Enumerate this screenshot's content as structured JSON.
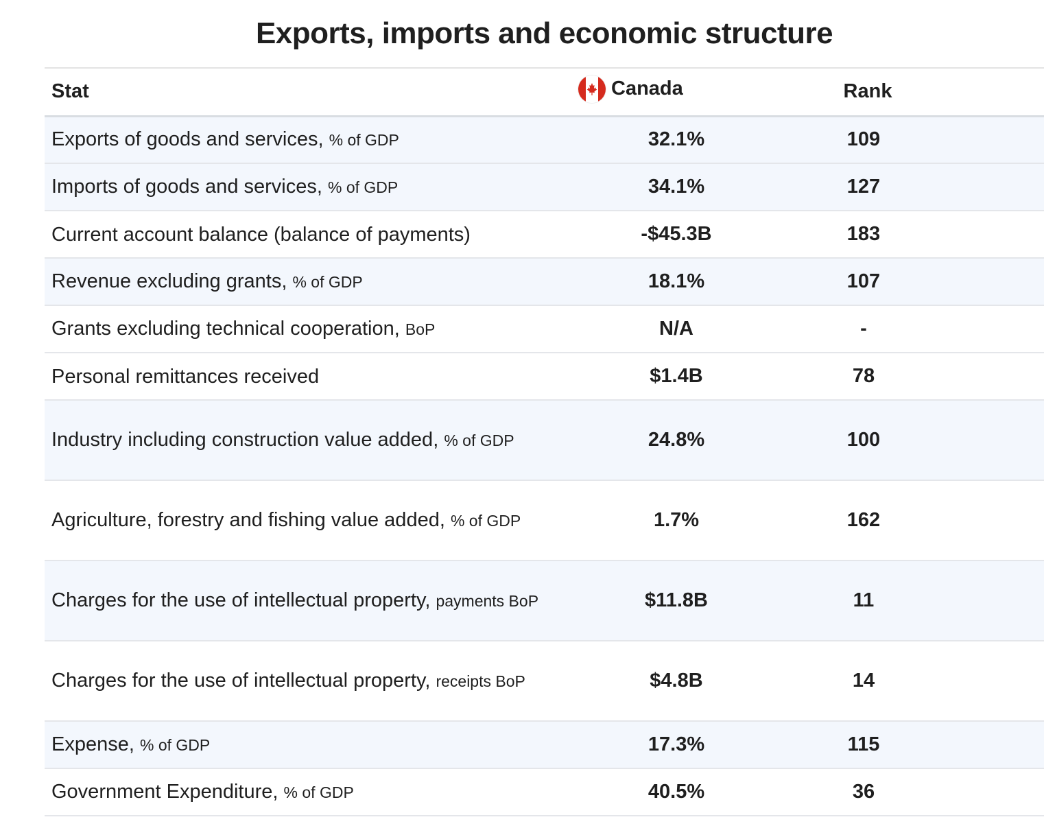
{
  "title": "Exports, imports and economic structure",
  "table": {
    "headers": {
      "stat": "Stat",
      "country": "Canada",
      "rank": "Rank"
    },
    "country_flag_icon": "canada-flag-icon",
    "rows": [
      {
        "label": "Exports of goods and services",
        "unit": "% of GDP",
        "value": "32.1%",
        "rank": "109"
      },
      {
        "label": "Imports of goods and services",
        "unit": "% of GDP",
        "value": "34.1%",
        "rank": "127"
      },
      {
        "label": "Current account balance (balance of payments)",
        "unit": "",
        "value": "-$45.3B",
        "rank": "183"
      },
      {
        "label": "Revenue excluding grants",
        "unit": "% of GDP",
        "value": "18.1%",
        "rank": "107"
      },
      {
        "label": "Grants excluding technical cooperation",
        "unit": "BoP",
        "value": "N/A",
        "rank": "-"
      },
      {
        "label": "Personal remittances received",
        "unit": "",
        "value": "$1.4B",
        "rank": "78"
      },
      {
        "label": "Industry including construction value added",
        "unit": "% of GDP",
        "value": "24.8%",
        "rank": "100"
      },
      {
        "label": "Agriculture, forestry and fishing value added",
        "unit": "% of GDP",
        "value": "1.7%",
        "rank": "162"
      },
      {
        "label": "Charges for the use of intellectual property",
        "unit": "payments BoP",
        "value": "$11.8B",
        "rank": "11"
      },
      {
        "label": "Charges for the use of intellectual property",
        "unit": "receipts BoP",
        "value": "$4.8B",
        "rank": "14"
      },
      {
        "label": "Expense",
        "unit": "% of GDP",
        "value": "17.3%",
        "rank": "115"
      },
      {
        "label": "Government Expenditure",
        "unit": "% of GDP",
        "value": "40.5%",
        "rank": "36"
      }
    ]
  },
  "colors": {
    "shaded_row": "#f3f7fd",
    "border": "#e4e6ea",
    "flag_red": "#d52b1e"
  }
}
